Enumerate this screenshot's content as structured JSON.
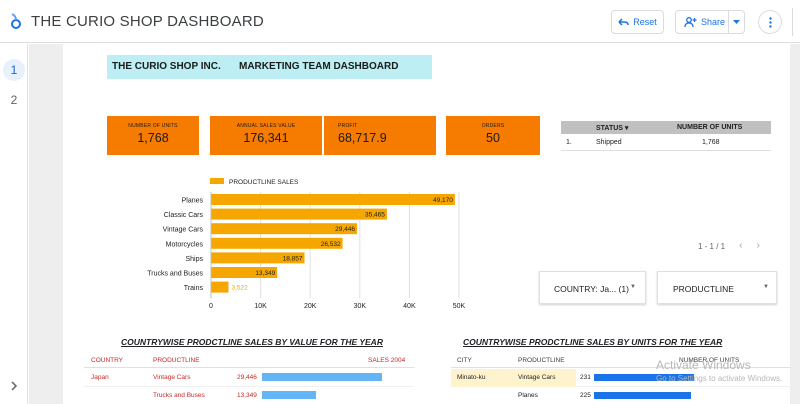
{
  "app": {
    "title": "THE CURIO SHOP DASHBOARD",
    "logo_icon": "looker-studio-icon"
  },
  "toolbar": {
    "reset_label": "Reset",
    "share_label": "Share",
    "accent": "#1a73e8"
  },
  "pages": [
    "1",
    "2"
  ],
  "report": {
    "company": "THE CURIO  SHOP INC.",
    "subtitle": "MARKETING TEAM DASHBOARD"
  },
  "kpis": [
    {
      "label": "NUMBER OF UNITS",
      "value": "1,768"
    },
    {
      "label": "ANNUAL SALES VALUE",
      "value": "176,341"
    },
    {
      "label": "PROFIT",
      "value": "68,717.9"
    },
    {
      "label": "ORDERS",
      "value": "50"
    }
  ],
  "status_table": {
    "headers": {
      "status": "STATUS",
      "sort_icon": "▾",
      "units": "NUMBER OF UNITS"
    },
    "rows": [
      {
        "index": "1.",
        "status": "Shipped",
        "units": "1,768"
      }
    ]
  },
  "pager": {
    "text": "1 - 1 / 1",
    "prev": "‹",
    "next": "›"
  },
  "filters": {
    "country": "COUNTRY: Ja... (1)",
    "productline": "PRODUCTLINE",
    "caret": "▼"
  },
  "chart_data": {
    "type": "bar",
    "orientation": "horizontal",
    "legend": "PRODUCTLINE SALES",
    "legend_position": "top",
    "categories": [
      "Planes",
      "Classic Cars",
      "Vintage Cars",
      "Motorcycles",
      "Ships",
      "Trucks and Buses",
      "Trains"
    ],
    "values": [
      49170,
      35465,
      29446,
      26532,
      18857,
      13349,
      3522
    ],
    "value_labels": [
      "49,170",
      "35,465",
      "29,446",
      "26,532",
      "18,857",
      "13,349",
      "3,522"
    ],
    "xlim": [
      0,
      50000
    ],
    "xticks": [
      0,
      10000,
      20000,
      30000,
      40000,
      50000
    ],
    "xtick_labels": [
      "0",
      "10K",
      "20K",
      "30K",
      "40K",
      "50K"
    ],
    "grid": true,
    "color": "#f5a700"
  },
  "sales_table": {
    "title": "COUNTRYWISE PRODCTLINE SALES BY VALUE FOR THE  YEAR",
    "headers": {
      "country": "COUNTRY",
      "productline": "PRODUCTLINE",
      "sales": "SALES 2004"
    },
    "max": 49170,
    "rows": [
      {
        "country": "Japan",
        "productline": "Vintage Cars",
        "value": 29446,
        "value_label": "29,446"
      },
      {
        "country": "",
        "productline": "Trucks and Buses",
        "value": 13349,
        "value_label": "13,349"
      }
    ]
  },
  "units_table": {
    "title": "COUNTRYWISE PRODCTLINE SALES BY UNITS  FOR THE  YEAR",
    "headers": {
      "city": "CITY",
      "productline": "PRODUCTLINE",
      "units": "NUMBER OF UNITS"
    },
    "max": 231,
    "rows": [
      {
        "city": "Minato-ku",
        "productline": "Vintage Cars",
        "value": 231,
        "value_label": "231"
      },
      {
        "city": "",
        "productline": "Planes",
        "value": 225,
        "value_label": "225"
      }
    ]
  },
  "watermark": {
    "line1": "Activate Windows",
    "line2": "Go to Settings to activate Windows."
  }
}
